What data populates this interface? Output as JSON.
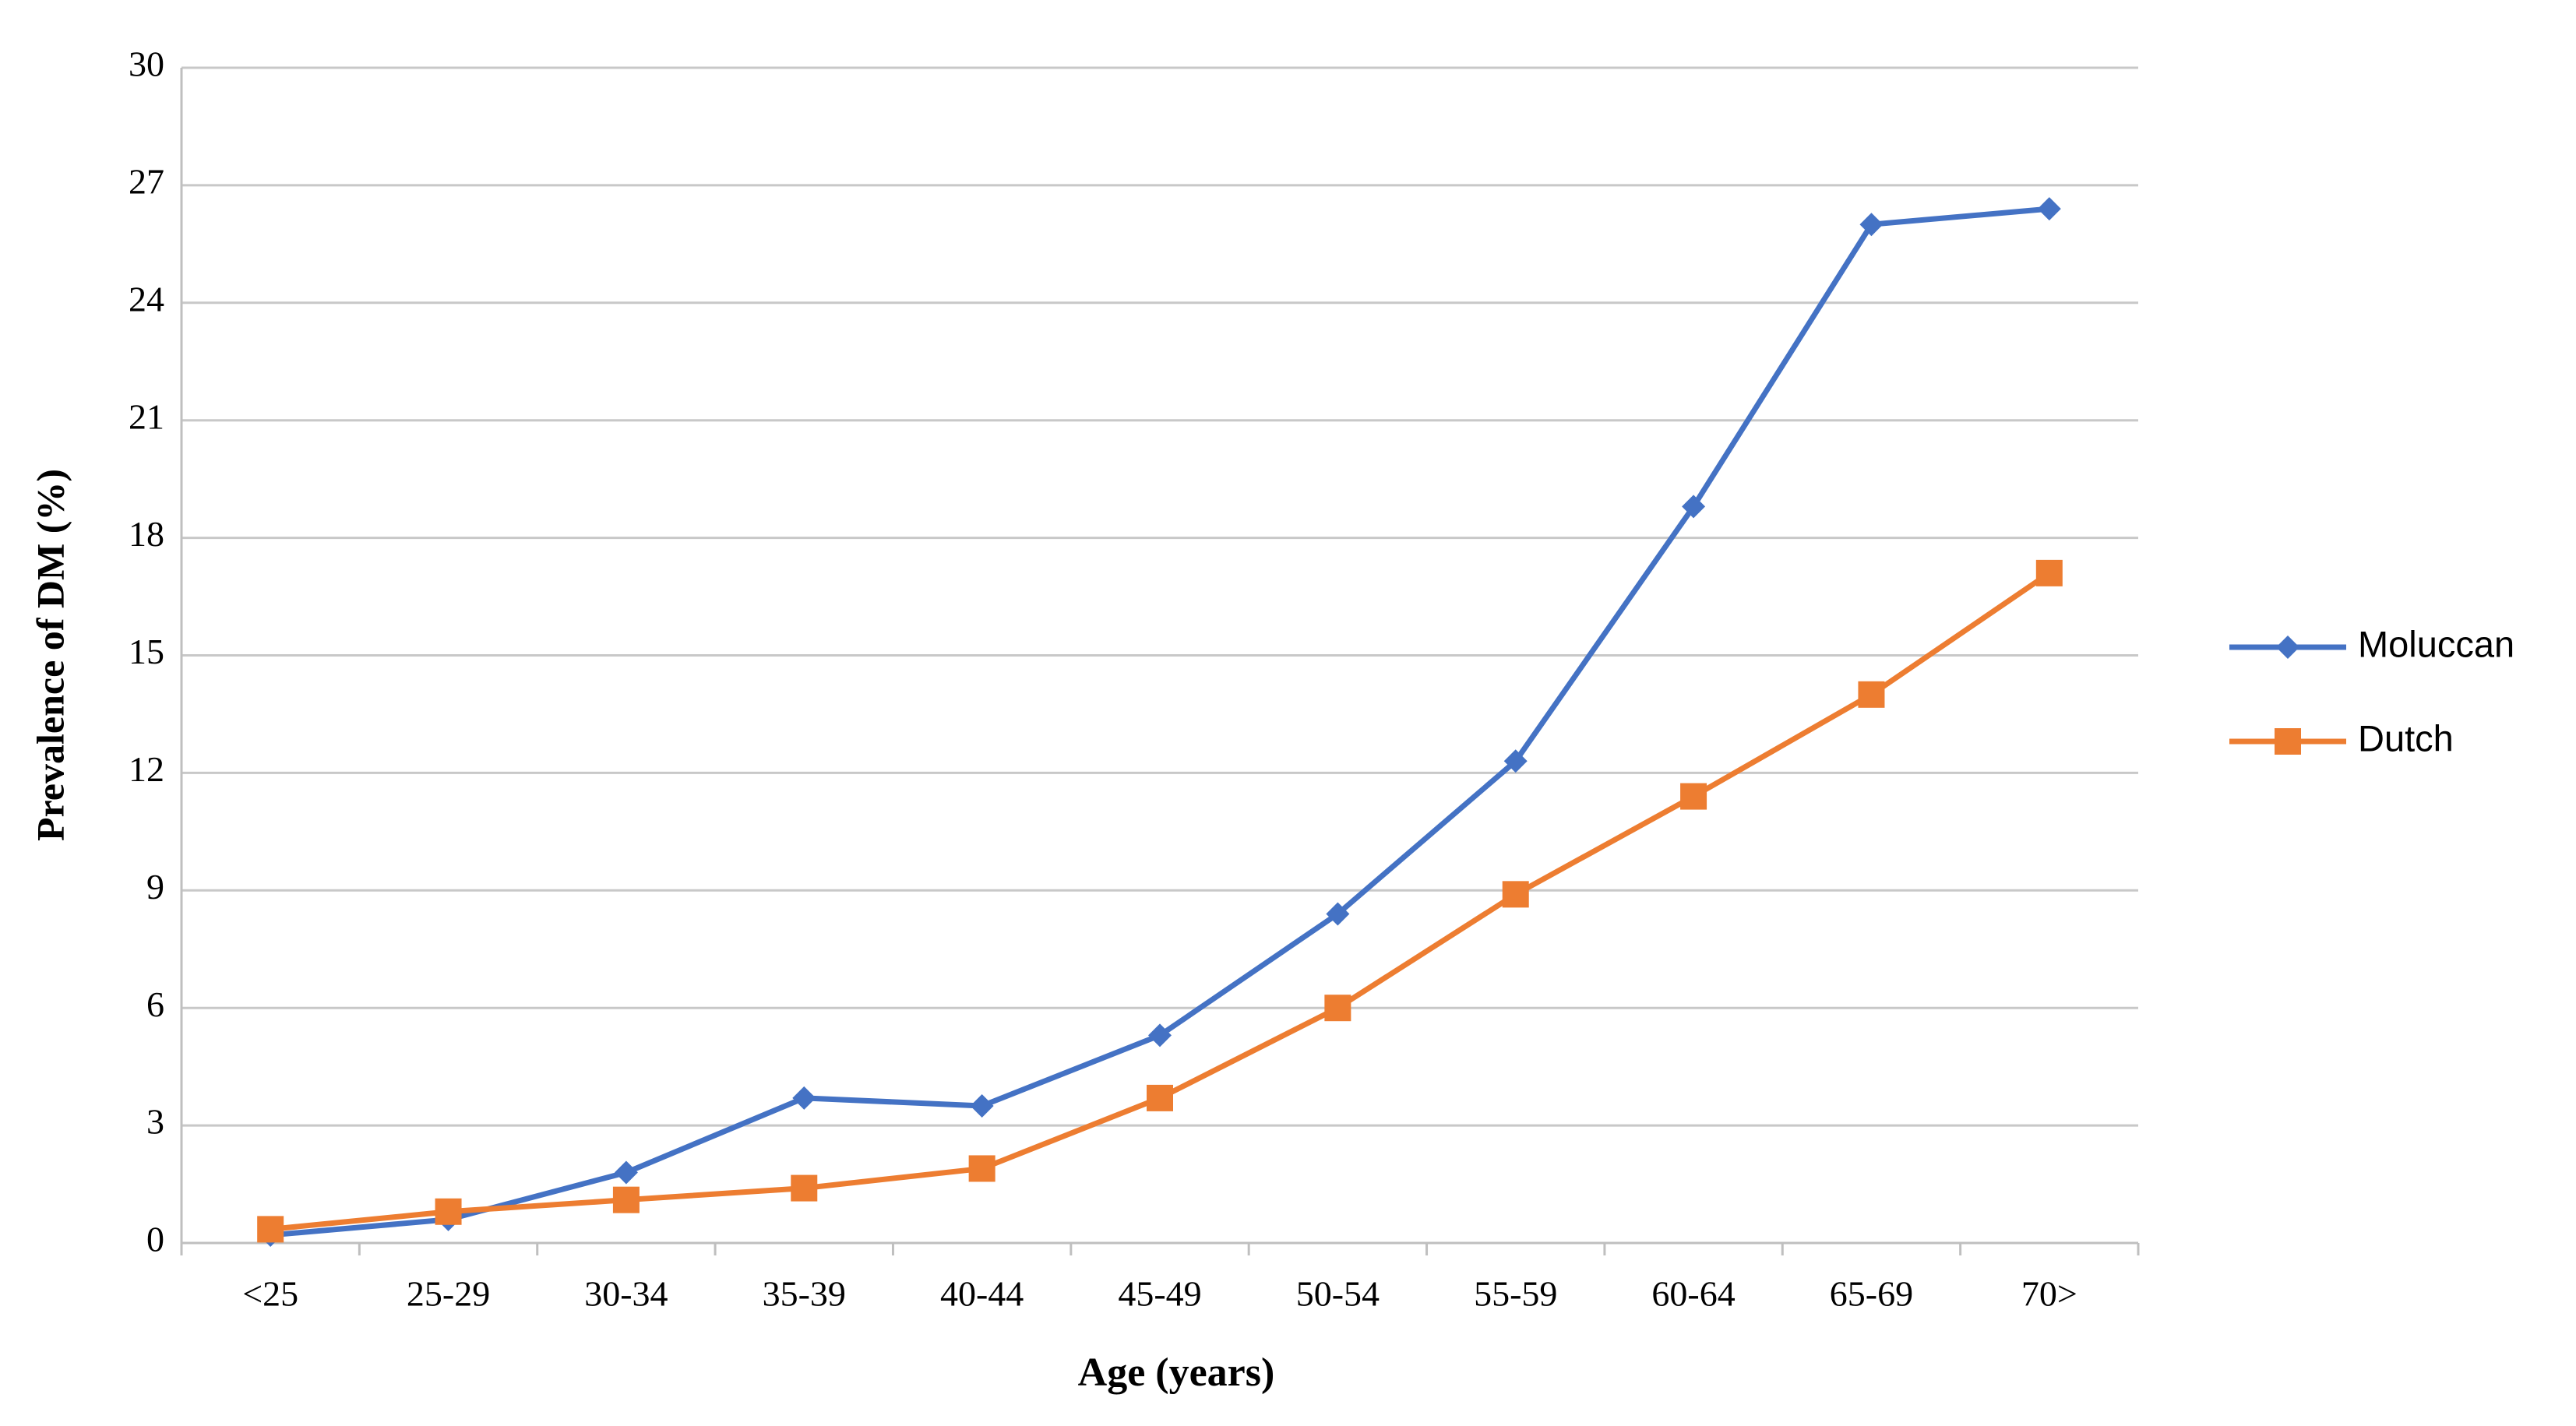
{
  "chart_data": {
    "type": "line",
    "x_label": "Age (years)",
    "y_label": "Prevalence of DM (%)",
    "categories": [
      "<25",
      "25-29",
      "30-34",
      "35-39",
      "40-44",
      "45-49",
      "50-54",
      "55-59",
      "60-64",
      "65-69",
      "70>"
    ],
    "series": [
      {
        "name": "Moluccan",
        "color": "#4472c4",
        "marker": "diamond",
        "values": [
          0.2,
          0.6,
          1.8,
          3.7,
          3.5,
          5.3,
          8.4,
          12.3,
          18.8,
          26.0,
          26.4
        ]
      },
      {
        "name": "Dutch",
        "color": "#ed7d31",
        "marker": "square",
        "values": [
          0.35,
          0.8,
          1.1,
          1.4,
          1.9,
          3.7,
          6.0,
          8.9,
          11.4,
          14.0,
          17.1
        ]
      }
    ],
    "ylim": [
      0,
      30
    ],
    "yticks": [
      0,
      3,
      6,
      9,
      12,
      15,
      18,
      21,
      24,
      27,
      30
    ],
    "grid": true,
    "legend": "right"
  }
}
